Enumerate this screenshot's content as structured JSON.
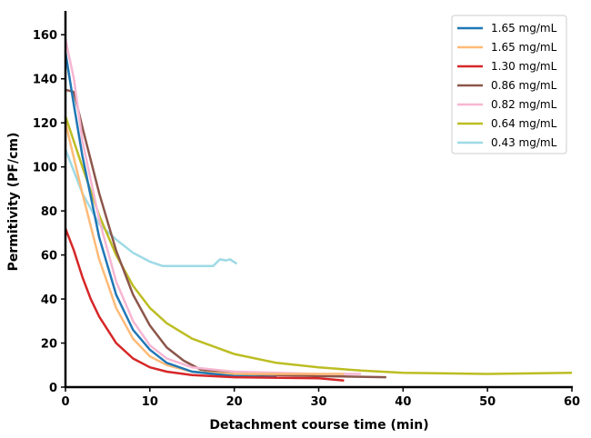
{
  "chart_data": {
    "type": "line",
    "title": "",
    "xlabel": "Detachment course time (min)",
    "ylabel": "Permitivity (PF/cm)",
    "xlim": [
      0,
      60
    ],
    "ylim": [
      0,
      170
    ],
    "xticks": [
      0,
      10,
      20,
      30,
      40,
      50,
      60
    ],
    "yticks": [
      0,
      20,
      40,
      60,
      80,
      100,
      120,
      140,
      160
    ],
    "grid": false,
    "legend_position": "top-right",
    "series": [
      {
        "name": "1.65 mg/mL",
        "color": "#1f77b4",
        "x": [
          0,
          1,
          2,
          4,
          6,
          8,
          10,
          12,
          15,
          20,
          25
        ],
        "y": [
          152,
          128,
          105,
          68,
          42,
          26,
          17,
          11,
          7,
          5,
          4.5
        ]
      },
      {
        "name": "1.65 mg/mL",
        "color": "#ffbb78",
        "x": [
          0,
          1,
          2,
          4,
          6,
          8,
          10,
          12,
          15,
          20,
          30,
          33
        ],
        "y": [
          120,
          104,
          88,
          58,
          36,
          22,
          14,
          10,
          7,
          6,
          6,
          6
        ]
      },
      {
        "name": "1.30 mg/mL",
        "color": "#d62728",
        "x": [
          0,
          1,
          2,
          3,
          4,
          6,
          8,
          10,
          12,
          15,
          20,
          30,
          33
        ],
        "y": [
          72,
          62,
          50,
          40,
          32,
          20,
          13,
          9,
          7,
          5.5,
          4.5,
          4,
          3
        ]
      },
      {
        "name": "0.86 mg/mL",
        "color": "#8c564b",
        "x": [
          0,
          1,
          2,
          4,
          6,
          8,
          10,
          12,
          14,
          16,
          20,
          30,
          38
        ],
        "y": [
          135,
          134,
          118,
          88,
          62,
          42,
          28,
          18,
          12,
          8,
          6,
          5,
          4.5
        ]
      },
      {
        "name": "0.82 mg/mL",
        "color": "#f7b6d2",
        "x": [
          0,
          1,
          2,
          4,
          6,
          8,
          10,
          12,
          15,
          20,
          30,
          35
        ],
        "y": [
          158,
          140,
          112,
          76,
          48,
          30,
          19,
          13,
          9,
          7,
          6,
          6
        ]
      },
      {
        "name": "0.64 mg/mL",
        "color": "#bcbd22",
        "x": [
          0,
          2,
          4,
          6,
          8,
          10,
          12,
          15,
          20,
          25,
          30,
          35,
          40,
          50,
          60
        ],
        "y": [
          123,
          100,
          78,
          60,
          46,
          36,
          29,
          22,
          15,
          11,
          9,
          7.5,
          6.5,
          6,
          6.5
        ]
      },
      {
        "name": "0.43 mg/mL",
        "color": "#9edae5",
        "x": [
          0,
          2,
          4,
          6,
          8,
          10,
          11.5,
          14,
          17.5,
          18.3,
          19,
          19.5,
          20.3
        ],
        "y": [
          108,
          88,
          74,
          67,
          61,
          57,
          55,
          55,
          55,
          58,
          57.5,
          58,
          56
        ]
      }
    ]
  }
}
